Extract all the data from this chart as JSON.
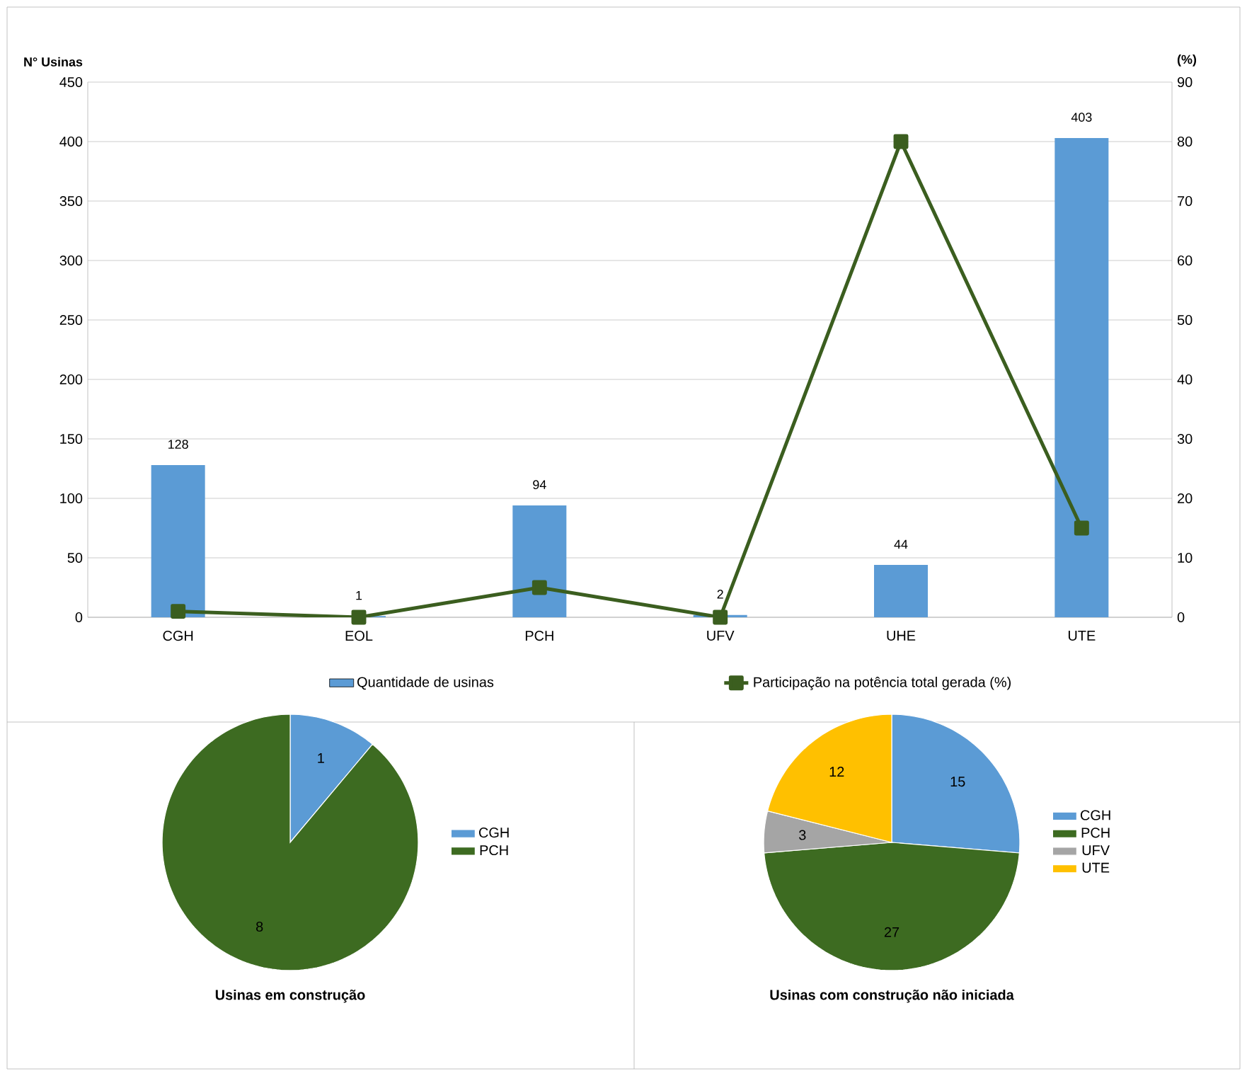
{
  "chart_data": [
    {
      "type": "bar",
      "categories": [
        "CGH",
        "EOL",
        "PCH",
        "UFV",
        "UHE",
        "UTE"
      ],
      "ylabel": "N° Usinas",
      "y2label": "(%)",
      "ylim": [
        0,
        450
      ],
      "yticks": [
        0,
        50,
        100,
        150,
        200,
        250,
        300,
        350,
        400,
        450
      ],
      "y2lim": [
        0,
        90
      ],
      "y2ticks": [
        0,
        10,
        20,
        30,
        40,
        50,
        60,
        70,
        80,
        90
      ],
      "grid": "y",
      "legend": "bottom",
      "series": [
        {
          "name": "Quantidade de usinas",
          "type": "bar",
          "color": "#5b9bd5",
          "values": [
            128,
            1,
            94,
            2,
            44,
            403
          ],
          "value_labels": [
            "128",
            "1",
            "94",
            "2",
            "44",
            "403"
          ]
        },
        {
          "name": "Participação na potência total gerada (%)",
          "type": "line",
          "axis": "y2",
          "color": "#3b5e1f",
          "marker": "square",
          "values": [
            1,
            0,
            5,
            0,
            80,
            15
          ]
        }
      ]
    },
    {
      "type": "pie",
      "title": "Usinas em construção",
      "categories": [
        "CGH",
        "PCH"
      ],
      "values": [
        1,
        8
      ],
      "colors": [
        "#5b9bd5",
        "#3d6b21"
      ],
      "data_labels": true,
      "legend": "right"
    },
    {
      "type": "pie",
      "title": "Usinas com construção não iniciada",
      "categories": [
        "CGH",
        "PCH",
        "UFV",
        "UTE"
      ],
      "values": [
        15,
        27,
        3,
        12
      ],
      "colors": [
        "#5b9bd5",
        "#3d6b21",
        "#a5a5a5",
        "#ffc000"
      ],
      "data_labels": true,
      "legend": "right"
    }
  ]
}
